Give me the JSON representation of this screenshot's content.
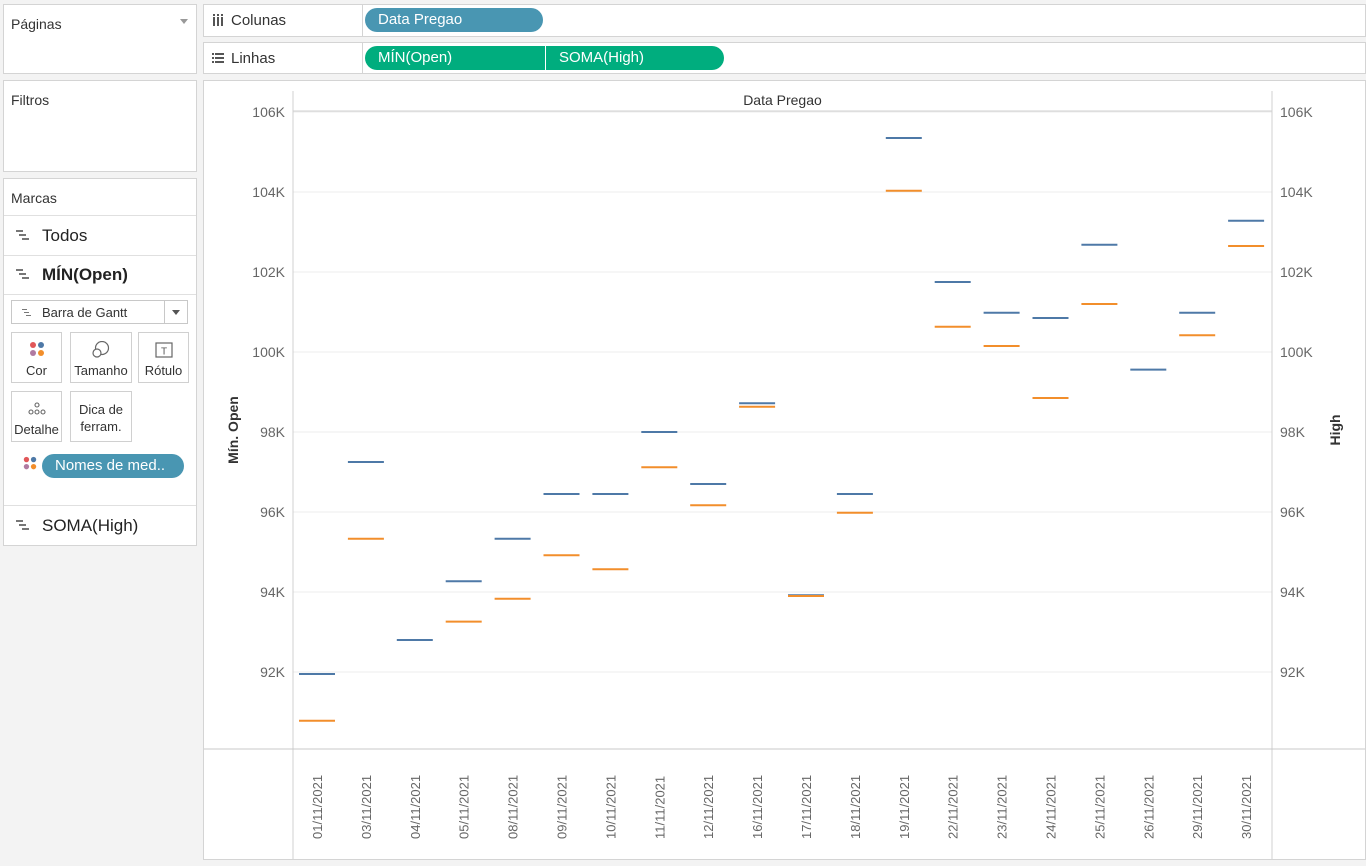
{
  "pages_panel": {
    "title": "Páginas"
  },
  "filters_panel": {
    "title": "Filtros"
  },
  "marks_panel": {
    "title": "Marcas",
    "rows": [
      {
        "label": "Todos"
      },
      {
        "label": "MÍN(Open)"
      }
    ],
    "mark_type": "Barra de Gantt",
    "buttons": [
      {
        "label": "Cor",
        "icon": "color-icon"
      },
      {
        "label": "Tamanho",
        "icon": "size-icon"
      },
      {
        "label": "Rótulo",
        "icon": "label-icon"
      },
      {
        "label": "Detalhe",
        "icon": "detail-icon"
      },
      {
        "label_line1": "Dica de",
        "label_line2": "ferram.",
        "icon": "none"
      }
    ],
    "measure_names_pill": "Nomes de med..",
    "last_row": {
      "label": "SOMA(High)"
    }
  },
  "columns_shelf": {
    "label": "Colunas",
    "pills": [
      "Data Pregao"
    ]
  },
  "rows_shelf": {
    "label": "Linhas",
    "pills": [
      "MÍN(Open)",
      "SOMA(High)"
    ]
  },
  "colors": {
    "series_open": "#4e79a7",
    "series_high": "#f28e2b",
    "pill_dimension": "#4996b2",
    "pill_measure": "#00ad7e"
  },
  "chart_data": {
    "type": "gantt",
    "title": "Data Pregao",
    "ylabel_left": "Mín. Open",
    "ylabel_right": "High",
    "ylim": [
      90000,
      106300
    ],
    "yticks": [
      92000,
      94000,
      96000,
      98000,
      100000,
      102000,
      104000,
      106000
    ],
    "ytick_labels": [
      "92K",
      "94K",
      "96K",
      "98K",
      "100K",
      "102K",
      "104K",
      "106K"
    ],
    "categories": [
      "01/11/2021",
      "03/11/2021",
      "04/11/2021",
      "05/11/2021",
      "08/11/2021",
      "09/11/2021",
      "10/11/2021",
      "11/11/2021",
      "12/11/2021",
      "16/11/2021",
      "17/11/2021",
      "18/11/2021",
      "19/11/2021",
      "22/11/2021",
      "23/11/2021",
      "24/11/2021",
      "25/11/2021",
      "26/11/2021",
      "29/11/2021",
      "30/11/2021"
    ],
    "series": [
      {
        "name": "MÍN(Open)",
        "values": [
          91950,
          97250,
          92800,
          94270,
          95330,
          96450,
          96450,
          98000,
          96700,
          98720,
          93920,
          96450,
          105350,
          101750,
          100980,
          100850,
          102680,
          99560,
          100980,
          103280
        ]
      },
      {
        "name": "SOMA(High)",
        "values": [
          90780,
          95330,
          null,
          93260,
          93830,
          94920,
          94570,
          97120,
          96170,
          98630,
          93900,
          95980,
          104030,
          100630,
          100150,
          98850,
          101200,
          null,
          100420,
          102650
        ]
      }
    ],
    "grid": true
  }
}
